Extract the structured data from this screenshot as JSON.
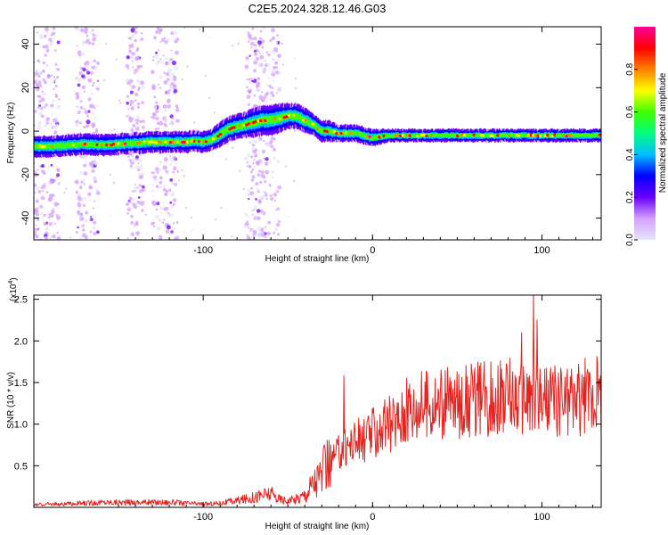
{
  "figure_title": "C2E5.2024.328.12.46.G03",
  "chart_data": [
    {
      "type": "heatmap",
      "title": "C2E5.2024.328.12.46.G03",
      "xlabel": "Height of straight line (km)",
      "ylabel": "Frequency (Hz)",
      "xlim": [
        -200,
        135
      ],
      "ylim": [
        -50,
        48
      ],
      "xticks": [
        -100,
        0,
        100
      ],
      "yticks": [
        -40,
        -20,
        0,
        20,
        40
      ],
      "colorbar": {
        "label": "Normalized spectral amplitude",
        "range": [
          0,
          1
        ],
        "ticks": [
          "0.0",
          "0.2",
          "0.4",
          "0.6",
          "0.8"
        ],
        "colors": [
          "#e6e6fa",
          "#d6a0ff",
          "#6a00ff",
          "#0000ff",
          "#00bfff",
          "#00ff80",
          "#40ff00",
          "#ffff00",
          "#ff8000",
          "#ff0000",
          "#ff0099"
        ]
      },
      "ridge": {
        "x": [
          -200,
          -190,
          -180,
          -170,
          -160,
          -150,
          -140,
          -130,
          -120,
          -115,
          -110,
          -105,
          -100,
          -95,
          -90,
          -85,
          -80,
          -75,
          -70,
          -65,
          -60,
          -55,
          -50,
          -45,
          -40,
          -35,
          -30,
          -25,
          -20,
          -15,
          -10,
          -5,
          0,
          10,
          20,
          40,
          60,
          80,
          100,
          120,
          135
        ],
        "freq": [
          -7,
          -7,
          -6.5,
          -6,
          -6.5,
          -6,
          -5.5,
          -5,
          -5,
          -5,
          -5,
          -4.5,
          -5,
          -4,
          -1.5,
          1,
          2,
          3,
          4,
          5,
          5,
          6,
          7,
          7,
          5,
          3,
          0,
          0,
          -1,
          -1,
          -1,
          -2,
          -3,
          -2,
          -2,
          -2,
          -2,
          -2,
          -2,
          -2,
          -2
        ],
        "width": [
          5,
          5,
          5,
          5,
          5,
          5,
          5,
          5,
          5,
          5,
          5,
          5,
          5,
          5,
          6,
          6,
          6,
          6,
          7,
          7,
          7,
          7,
          6,
          6,
          6,
          5,
          5,
          5,
          4,
          4,
          4,
          4,
          4,
          3,
          3,
          3,
          3,
          3,
          3,
          3,
          3
        ]
      },
      "noise_bands_x": [
        [
          -200,
          -185
        ],
        [
          -175,
          -162
        ],
        [
          -145,
          -135
        ],
        [
          -130,
          -115
        ],
        [
          -75,
          -55
        ]
      ]
    },
    {
      "type": "line",
      "xlabel": "Height of straight line (km)",
      "ylabel": "SNR (10 * v/v)",
      "scale_label": "(x10",
      "scale_exponent": "4",
      "scale_suffix": ")",
      "xlim": [
        -200,
        135
      ],
      "ylim": [
        0,
        2.55
      ],
      "xticks": [
        -100,
        0,
        100
      ],
      "yticks": [
        0.5,
        1.0,
        1.5,
        2.0,
        2.5
      ],
      "color": "#e8231f",
      "series": [
        {
          "x": [
            -200,
            -190,
            -180,
            -170,
            -160,
            -150,
            -140,
            -130,
            -120,
            -110,
            -100,
            -90,
            -80,
            -70,
            -65,
            -60,
            -55,
            -50,
            -45,
            -40,
            -35,
            -30,
            -25,
            -20,
            -15,
            -10,
            -5,
            0,
            5,
            10,
            15,
            20,
            25,
            30,
            40,
            50,
            60,
            70,
            80,
            90,
            95,
            100,
            110,
            120,
            130,
            135
          ],
          "values": [
            0.03,
            0.04,
            0.04,
            0.05,
            0.06,
            0.06,
            0.06,
            0.06,
            0.06,
            0.05,
            0.04,
            0.05,
            0.08,
            0.12,
            0.15,
            0.16,
            0.1,
            0.08,
            0.1,
            0.15,
            0.3,
            0.4,
            0.55,
            0.65,
            0.75,
            0.8,
            0.8,
            0.9,
            0.95,
            1.0,
            1.05,
            1.15,
            1.2,
            1.25,
            1.25,
            1.25,
            1.3,
            1.3,
            1.35,
            1.3,
            1.3,
            1.3,
            1.3,
            1.3,
            1.35,
            1.35
          ]
        }
      ],
      "peaks": [
        {
          "x": -17,
          "y": 1.58
        },
        {
          "x": 22,
          "y": 1.48
        },
        {
          "x": 88,
          "y": 2.1
        },
        {
          "x": 95,
          "y": 2.55
        },
        {
          "x": 97,
          "y": 2.25
        }
      ]
    }
  ]
}
